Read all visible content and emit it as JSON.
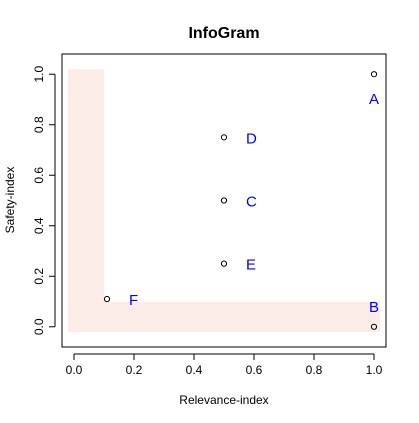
{
  "chart_data": {
    "type": "scatter",
    "title": "InfoGram",
    "xlabel": "Relevance-index",
    "ylabel": "Safety-index",
    "xlim": [
      -0.04,
      1.04
    ],
    "ylim": [
      -0.08,
      1.08
    ],
    "xticks": [
      "0.0",
      "0.2",
      "0.4",
      "0.6",
      "0.8",
      "1.0"
    ],
    "yticks": [
      "0.0",
      "0.2",
      "0.4",
      "0.6",
      "0.8",
      "1.0"
    ],
    "grid": false,
    "shaded_region": {
      "color": "#fbece8",
      "vertical_band": {
        "x": [
          -0.02,
          0.1
        ],
        "y": [
          -0.02,
          1.02
        ]
      },
      "horizontal_band": {
        "x": [
          -0.02,
          1.02
        ],
        "y": [
          -0.02,
          0.1
        ]
      }
    },
    "points": [
      {
        "label": "A",
        "x": 1.0,
        "y": 1.0,
        "label_pos": "below"
      },
      {
        "label": "B",
        "x": 1.0,
        "y": 0.0,
        "label_pos": "above"
      },
      {
        "label": "C",
        "x": 0.5,
        "y": 0.5,
        "label_pos": "right"
      },
      {
        "label": "D",
        "x": 0.5,
        "y": 0.75,
        "label_pos": "right"
      },
      {
        "label": "E",
        "x": 0.5,
        "y": 0.25,
        "label_pos": "right"
      },
      {
        "label": "F",
        "x": 0.11,
        "y": 0.11,
        "label_pos": "right"
      }
    ],
    "label_color": "#0000ff"
  }
}
